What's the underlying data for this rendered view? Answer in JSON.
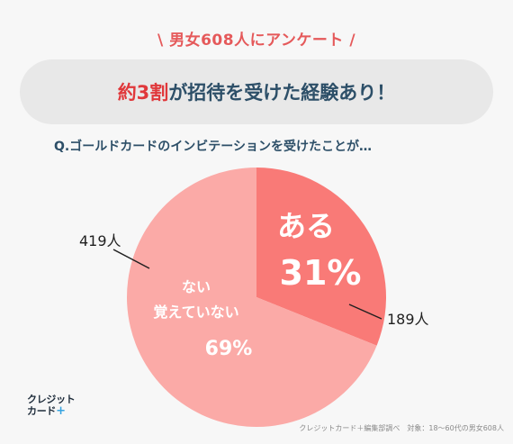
{
  "header": {
    "survey_tag": "\\ 男女608人にアンケート /",
    "headline_accent": "約3割",
    "headline_rest": "が招待を受けた経験あり！"
  },
  "question": "Q.ゴールドカードのインビテーションを受けたことが…",
  "chart_data": {
    "type": "pie",
    "title": "",
    "slices": [
      {
        "label": "ある",
        "percent_label": "31%",
        "count_label": "189人",
        "value": 189,
        "color": "#f97a77"
      },
      {
        "label": "ない\n覚えていない",
        "percent_label": "69%",
        "count_label": "419人",
        "value": 419,
        "color": "#fbaaa7"
      }
    ]
  },
  "logo": {
    "line1": "クレジット",
    "line2": "カード",
    "plus": "+"
  },
  "footer_note": "クレジットカード＋編集部調べ　対象：18〜60代の男女608人"
}
